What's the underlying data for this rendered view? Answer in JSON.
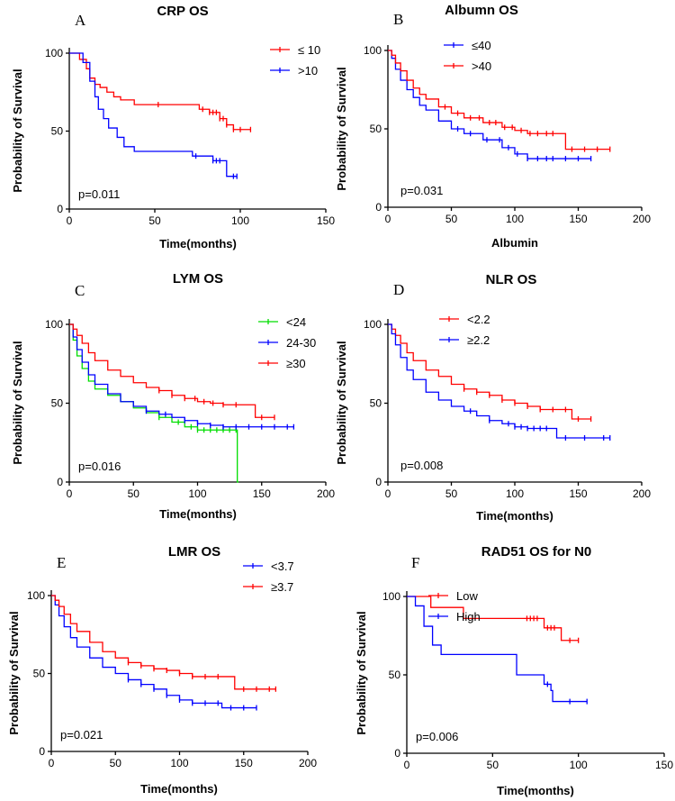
{
  "chart_data": [
    {
      "type": "line",
      "panel": "A",
      "title": "CRP OS",
      "xlabel": "Time(months)",
      "ylabel": "Probability of Survival",
      "xlim": [
        0,
        150
      ],
      "ylim": [
        0,
        100
      ],
      "xticks": [
        0,
        50,
        100,
        150
      ],
      "yticks": [
        0,
        50,
        100
      ],
      "p_value": "p=0.011",
      "series": [
        {
          "name": "≤ 10",
          "color": "#ff0000",
          "x": [
            0,
            6,
            10,
            12,
            15,
            18,
            22,
            26,
            30,
            38,
            48,
            72,
            76,
            82,
            88,
            92,
            96,
            100,
            106
          ],
          "y": [
            100,
            96,
            90,
            84,
            80,
            78,
            75,
            72,
            70,
            67,
            67,
            67,
            64,
            62,
            58,
            54,
            51,
            51,
            51
          ],
          "censor_x": [
            52,
            78,
            82,
            84,
            86,
            88,
            90,
            92,
            96,
            100,
            106
          ]
        },
        {
          "name": ">10",
          "color": "#0000ff",
          "x": [
            0,
            8,
            12,
            15,
            17,
            20,
            23,
            28,
            32,
            38,
            56,
            72,
            84,
            90,
            92,
            98
          ],
          "y": [
            100,
            94,
            82,
            72,
            64,
            58,
            52,
            46,
            40,
            37,
            37,
            34,
            31,
            31,
            21,
            21
          ],
          "censor_x": [
            74,
            84,
            86,
            88,
            96,
            98
          ]
        }
      ]
    },
    {
      "type": "line",
      "panel": "B",
      "title": "Albumn OS",
      "xlabel": "Albumin",
      "ylabel": "Probability of Survival",
      "xlim": [
        0,
        200
      ],
      "ylim": [
        0,
        100
      ],
      "xticks": [
        0,
        50,
        100,
        150,
        200
      ],
      "yticks": [
        0,
        50,
        100
      ],
      "p_value": "p=0.031",
      "series": [
        {
          "name": "≤40",
          "color": "#0000ff",
          "x": [
            0,
            3,
            6,
            10,
            15,
            20,
            25,
            30,
            40,
            50,
            60,
            75,
            90,
            100,
            110,
            130,
            160
          ],
          "y": [
            100,
            95,
            88,
            81,
            75,
            70,
            65,
            62,
            55,
            50,
            47,
            43,
            38,
            34,
            31,
            31,
            31
          ],
          "censor_x": [
            55,
            65,
            78,
            88,
            95,
            102,
            110,
            118,
            125,
            130,
            140,
            150,
            160
          ]
        },
        {
          "name": ">40",
          "color": "#ff0000",
          "x": [
            0,
            3,
            6,
            10,
            15,
            20,
            25,
            30,
            40,
            50,
            60,
            75,
            90,
            100,
            110,
            135,
            140,
            175
          ],
          "y": [
            100,
            97,
            92,
            87,
            81,
            76,
            72,
            69,
            64,
            60,
            57,
            54,
            51,
            49,
            47,
            47,
            37,
            37
          ],
          "censor_x": [
            45,
            55,
            65,
            72,
            80,
            85,
            92,
            98,
            105,
            112,
            118,
            125,
            130,
            145,
            155,
            165,
            175
          ]
        }
      ]
    },
    {
      "type": "line",
      "panel": "C",
      "title": "LYM OS",
      "xlabel": "Time(months)",
      "ylabel": "Probability of Survival",
      "xlim": [
        0,
        200
      ],
      "ylim": [
        0,
        100
      ],
      "xticks": [
        0,
        50,
        100,
        150,
        200
      ],
      "yticks": [
        0,
        50,
        100
      ],
      "p_value": "p=0.016",
      "series": [
        {
          "name": "<24",
          "color": "#00dd00",
          "x": [
            0,
            3,
            6,
            10,
            15,
            20,
            30,
            40,
            50,
            60,
            70,
            80,
            90,
            100,
            110,
            120,
            130,
            131,
            132
          ],
          "y": [
            100,
            90,
            80,
            72,
            64,
            59,
            55,
            51,
            47,
            44,
            41,
            38,
            35,
            33,
            33,
            33,
            33,
            0,
            0
          ],
          "censor_x": [
            70,
            85,
            95,
            100,
            105,
            110,
            115,
            120,
            125,
            130
          ]
        },
        {
          "name": "24-30",
          "color": "#0000ff",
          "x": [
            0,
            3,
            6,
            10,
            15,
            20,
            30,
            40,
            50,
            60,
            70,
            80,
            90,
            100,
            110,
            120,
            175
          ],
          "y": [
            100,
            92,
            84,
            76,
            68,
            62,
            56,
            51,
            48,
            45,
            43,
            41,
            39,
            37,
            36,
            35,
            35
          ],
          "censor_x": [
            60,
            75,
            90,
            100,
            110,
            120,
            130,
            140,
            150,
            160,
            170,
            175
          ]
        },
        {
          "name": "≥30",
          "color": "#ff0000",
          "x": [
            0,
            3,
            6,
            10,
            15,
            20,
            30,
            40,
            50,
            60,
            70,
            80,
            90,
            100,
            110,
            120,
            140,
            145,
            160
          ],
          "y": [
            100,
            97,
            93,
            88,
            82,
            77,
            71,
            67,
            63,
            60,
            58,
            55,
            53,
            51,
            50,
            49,
            49,
            41,
            41
          ],
          "censor_x": [
            70,
            80,
            90,
            98,
            105,
            112,
            120,
            130,
            150,
            160
          ]
        }
      ]
    },
    {
      "type": "line",
      "panel": "D",
      "title": "NLR OS",
      "xlabel": "Time(months)",
      "ylabel": "Probability of Survival",
      "xlim": [
        0,
        200
      ],
      "ylim": [
        0,
        100
      ],
      "xticks": [
        0,
        50,
        100,
        150,
        200
      ],
      "yticks": [
        0,
        50,
        100
      ],
      "p_value": "p=0.008",
      "series": [
        {
          "name": "<2.2",
          "color": "#ff0000",
          "x": [
            0,
            3,
            6,
            10,
            15,
            20,
            30,
            40,
            50,
            60,
            70,
            80,
            90,
            100,
            110,
            120,
            140,
            145,
            160
          ],
          "y": [
            100,
            97,
            93,
            88,
            82,
            77,
            71,
            67,
            62,
            59,
            57,
            55,
            52,
            50,
            48,
            46,
            46,
            40,
            40
          ],
          "censor_x": [
            60,
            70,
            80,
            90,
            100,
            110,
            120,
            130,
            140,
            150,
            160
          ]
        },
        {
          "name": "≥2.2",
          "color": "#0000ff",
          "x": [
            0,
            3,
            6,
            10,
            15,
            20,
            30,
            40,
            50,
            60,
            70,
            80,
            90,
            100,
            110,
            130,
            133,
            175
          ],
          "y": [
            100,
            94,
            87,
            79,
            71,
            65,
            57,
            52,
            48,
            45,
            42,
            39,
            37,
            35,
            34,
            34,
            28,
            28
          ],
          "censor_x": [
            65,
            80,
            95,
            100,
            105,
            110,
            115,
            120,
            125,
            140,
            155,
            170,
            175
          ]
        }
      ]
    },
    {
      "type": "line",
      "panel": "E",
      "title": "LMR OS",
      "xlabel": "Time(months)",
      "ylabel": "Probability of Survival",
      "xlim": [
        0,
        200
      ],
      "ylim": [
        0,
        100
      ],
      "xticks": [
        0,
        50,
        100,
        150,
        200
      ],
      "yticks": [
        0,
        50,
        100
      ],
      "p_value": "p=0.021",
      "series": [
        {
          "name": "<3.7",
          "color": "#0000ff",
          "x": [
            0,
            3,
            6,
            10,
            15,
            20,
            30,
            40,
            50,
            60,
            70,
            80,
            90,
            100,
            110,
            130,
            133,
            160
          ],
          "y": [
            100,
            94,
            87,
            80,
            73,
            67,
            60,
            54,
            50,
            46,
            43,
            40,
            36,
            33,
            31,
            31,
            28,
            28
          ],
          "censor_x": [
            60,
            70,
            80,
            90,
            100,
            110,
            120,
            130,
            140,
            150,
            160
          ]
        },
        {
          "name": "≥3.7",
          "color": "#ff0000",
          "x": [
            0,
            3,
            6,
            10,
            15,
            20,
            30,
            40,
            50,
            60,
            70,
            80,
            90,
            100,
            110,
            140,
            143,
            175
          ],
          "y": [
            100,
            97,
            93,
            88,
            82,
            77,
            70,
            64,
            60,
            57,
            55,
            53,
            52,
            50,
            48,
            48,
            40,
            40
          ],
          "censor_x": [
            60,
            70,
            80,
            90,
            100,
            110,
            120,
            130,
            150,
            160,
            170,
            175
          ]
        }
      ]
    },
    {
      "type": "line",
      "panel": "F",
      "title": "RAD51 OS for N0",
      "xlabel": "Time(months)",
      "ylabel": "Probability of Survival",
      "xlim": [
        0,
        150
      ],
      "ylim": [
        0,
        100
      ],
      "xticks": [
        0,
        50,
        100,
        150
      ],
      "yticks": [
        0,
        50,
        100
      ],
      "p_value": "p=0.006",
      "series": [
        {
          "name": "Low",
          "color": "#ff0000",
          "x": [
            0,
            10,
            14,
            32,
            33,
            78,
            80,
            88,
            90,
            100
          ],
          "y": [
            100,
            100,
            93,
            93,
            86,
            86,
            80,
            80,
            72,
            72
          ],
          "censor_x": [
            70,
            72,
            74,
            76,
            82,
            84,
            86,
            95,
            100
          ]
        },
        {
          "name": "High",
          "color": "#0000ff",
          "x": [
            0,
            5,
            10,
            15,
            20,
            62,
            64,
            80,
            84,
            85,
            105
          ],
          "y": [
            100,
            94,
            81,
            69,
            63,
            63,
            50,
            44,
            40,
            33,
            33
          ],
          "censor_x": [
            82,
            95,
            105
          ]
        }
      ]
    }
  ]
}
